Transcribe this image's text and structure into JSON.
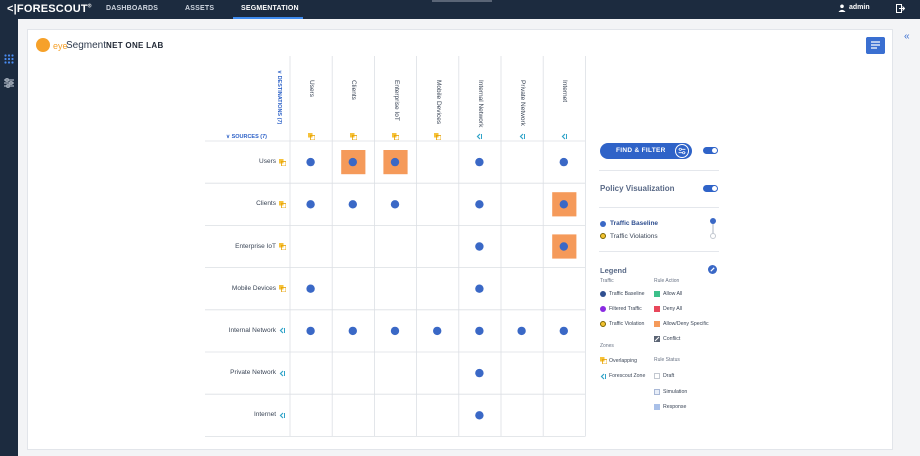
{
  "header": {
    "logo": "FORESCOUT",
    "logo_mark": "®",
    "tabs": [
      {
        "label": "DASHBOARDS"
      },
      {
        "label": "ASSETS"
      },
      {
        "label": "SEGMENTATION"
      }
    ],
    "user": "admin"
  },
  "page": {
    "brand_eye": "eye",
    "brand_segment": "Segment",
    "title": "NET ONE LAB"
  },
  "matrix": {
    "destinations_header": "DESTINATIONS (7)",
    "sources_header": "SOURCES (7)",
    "columns": [
      "Users",
      "Clients",
      "Enterprise IoT",
      "Mobile Devices",
      "Internal Network",
      "Private Network",
      "Internet"
    ],
    "rows": [
      "Users",
      "Clients",
      "Enterprise IoT",
      "Mobile Devices",
      "Internal Network",
      "Private Network",
      "Internet"
    ],
    "zone_types": [
      "overlapping",
      "overlapping",
      "overlapping",
      "overlapping",
      "forescout-zone",
      "forescout-zone",
      "forescout-zone"
    ],
    "cells": [
      [
        1,
        1,
        1,
        0,
        1,
        0,
        1
      ],
      [
        1,
        1,
        1,
        0,
        1,
        0,
        1
      ],
      [
        0,
        0,
        0,
        0,
        1,
        0,
        1
      ],
      [
        1,
        0,
        0,
        0,
        1,
        0,
        0
      ],
      [
        1,
        1,
        1,
        1,
        1,
        1,
        1
      ],
      [
        0,
        0,
        0,
        0,
        1,
        0,
        0
      ],
      [
        0,
        0,
        0,
        0,
        1,
        0,
        0
      ]
    ],
    "highlighted": [
      [
        0,
        1
      ],
      [
        0,
        2
      ],
      [
        1,
        6
      ],
      [
        2,
        6
      ]
    ],
    "colors": {
      "dot": "#3a68c6",
      "highlight": "#f59a5a",
      "grid": "#dcdfe4",
      "accent": "#2f63c8"
    }
  },
  "side_panel": {
    "find_filter": "FIND & FILTER",
    "policy_visualization": "Policy Visualization",
    "traffic_baseline": "Traffic Baseline",
    "traffic_violations": "Traffic Violations",
    "legend_title": "Legend",
    "traffic_heading": "Traffic",
    "rule_action_heading": "Rule Action",
    "traffic_items": [
      "Traffic Baseline",
      "Filtered Traffic",
      "Traffic Violation"
    ],
    "rule_action_items": [
      "Allow All",
      "Deny All",
      "Allow/Deny Specific",
      "Conflict"
    ],
    "zones_heading": "Zones",
    "rule_status_heading": "Rule Status",
    "zone_items": [
      "Overlapping",
      "Forescout Zone"
    ],
    "rule_status_items": [
      "Draft",
      "Simulation",
      "Response"
    ]
  }
}
